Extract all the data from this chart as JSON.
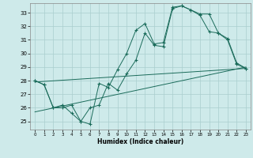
{
  "xlabel": "Humidex (Indice chaleur)",
  "xlim": [
    -0.5,
    23.5
  ],
  "ylim": [
    24.4,
    33.7
  ],
  "yticks": [
    25,
    26,
    27,
    28,
    29,
    30,
    31,
    32,
    33
  ],
  "xticks": [
    0,
    1,
    2,
    3,
    4,
    5,
    6,
    7,
    8,
    9,
    10,
    11,
    12,
    13,
    14,
    15,
    16,
    17,
    18,
    19,
    20,
    21,
    22,
    23
  ],
  "background_color": "#ceeaea",
  "grid_color": "#aacece",
  "line_color": "#1a6b5a",
  "line1_x": [
    0,
    1,
    2,
    3,
    4,
    5,
    6,
    7,
    8,
    9,
    10,
    11,
    12,
    13,
    14,
    15,
    16,
    17,
    18,
    19,
    20,
    21,
    22,
    23
  ],
  "line1_y": [
    28.0,
    27.7,
    26.0,
    26.2,
    25.6,
    25.0,
    24.8,
    27.8,
    27.5,
    28.8,
    30.0,
    31.7,
    32.2,
    30.7,
    30.8,
    33.4,
    33.5,
    33.2,
    32.8,
    31.6,
    31.5,
    31.1,
    29.3,
    28.9
  ],
  "line2_x": [
    0,
    1,
    2,
    3,
    4,
    5,
    6,
    7,
    8,
    9,
    10,
    11,
    12,
    13,
    14,
    15,
    16,
    17,
    18,
    19,
    20,
    21,
    22,
    23
  ],
  "line2_y": [
    28.0,
    27.7,
    26.0,
    26.0,
    26.2,
    25.0,
    26.0,
    26.2,
    27.8,
    27.3,
    28.5,
    29.5,
    31.5,
    30.6,
    30.5,
    33.3,
    33.5,
    33.2,
    32.9,
    32.9,
    31.5,
    31.0,
    29.2,
    28.9
  ],
  "line3_x": [
    0,
    23
  ],
  "line3_y": [
    27.9,
    28.9
  ],
  "line4_x": [
    0,
    23
  ],
  "line4_y": [
    25.7,
    29.0
  ]
}
